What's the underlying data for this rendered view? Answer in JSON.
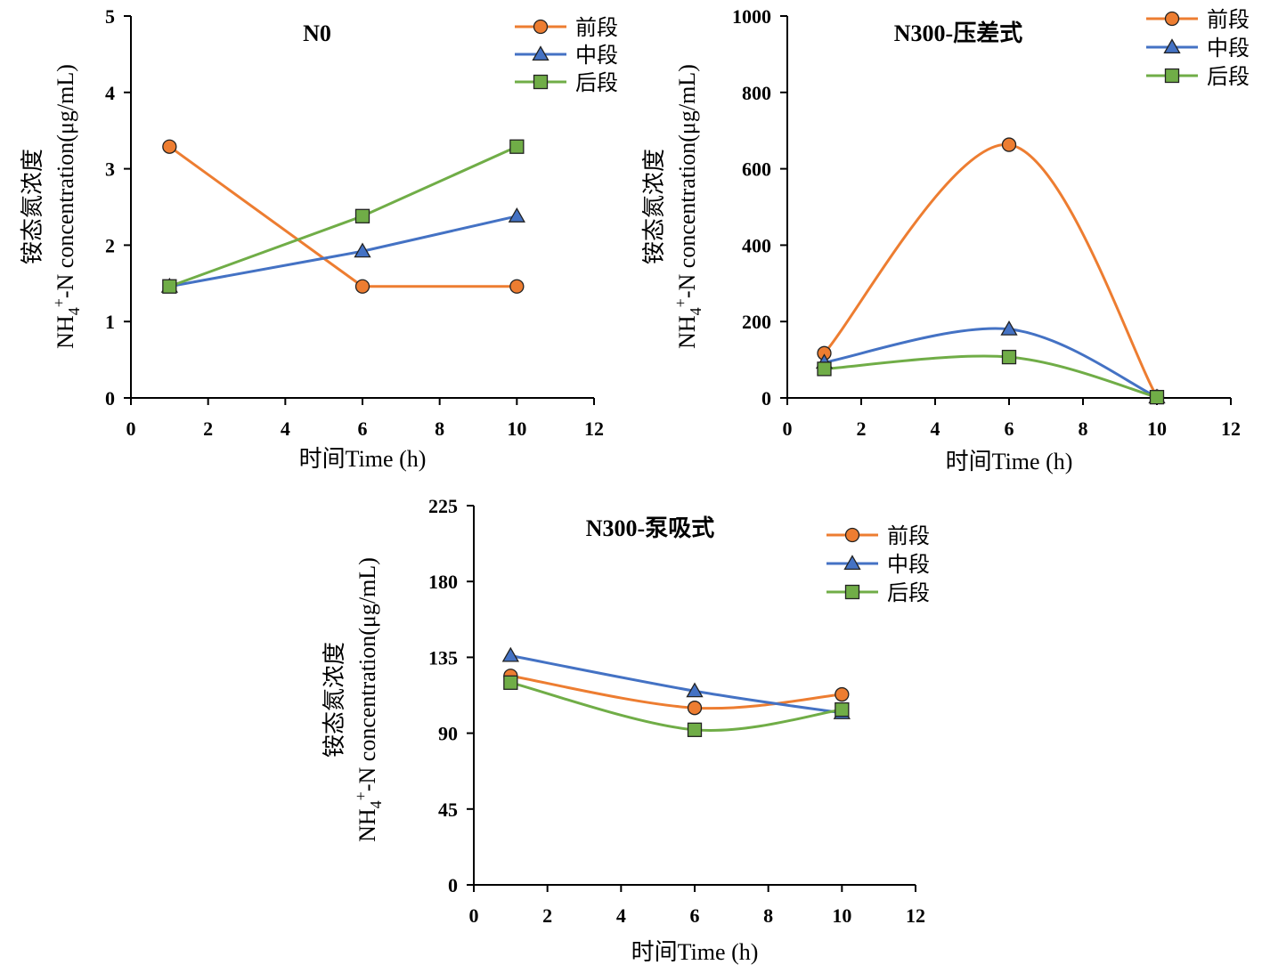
{
  "figure": {
    "colors": {
      "前段": "#ED7D31",
      "中段": "#4472C4",
      "后段": "#70AD47"
    },
    "markers": {
      "前段": "circle",
      "中段": "triangle",
      "后段": "square"
    }
  },
  "chart_data": [
    {
      "type": "line",
      "title": "N0",
      "xlabel": "时间Time (h)",
      "ylabel_line1": "铵态氮浓度",
      "ylabel_line2": "NH4+-N concentration(μg/mL)",
      "xlim": [
        0,
        12
      ],
      "ylim": [
        0,
        5
      ],
      "xticks": [
        0,
        2,
        4,
        6,
        8,
        10,
        12
      ],
      "yticks": [
        0,
        1,
        2,
        3,
        4,
        5
      ],
      "x": [
        1,
        6,
        10
      ],
      "smooth": false,
      "legend_position": "top-right",
      "series": [
        {
          "name": "前段",
          "values": [
            3.29,
            1.46,
            1.46
          ]
        },
        {
          "name": "中段",
          "values": [
            1.46,
            1.92,
            2.38
          ]
        },
        {
          "name": "后段",
          "values": [
            1.46,
            2.38,
            3.29
          ]
        }
      ]
    },
    {
      "type": "line",
      "title": "N300-压差式",
      "xlabel": "时间Time (h)",
      "ylabel_line1": "铵态氮浓度",
      "ylabel_line2": "NH4+-N concentration(μg/mL)",
      "xlim": [
        0,
        12
      ],
      "ylim": [
        0,
        1000
      ],
      "xticks": [
        0,
        2,
        4,
        6,
        8,
        10,
        12
      ],
      "yticks": [
        0,
        200,
        400,
        600,
        800,
        1000
      ],
      "x": [
        1,
        6,
        10
      ],
      "smooth": true,
      "legend_position": "top-right",
      "series": [
        {
          "name": "前段",
          "values": [
            117,
            663,
            3
          ]
        },
        {
          "name": "中段",
          "values": [
            93,
            180,
            2
          ]
        },
        {
          "name": "后段",
          "values": [
            76,
            107,
            2
          ]
        }
      ]
    },
    {
      "type": "line",
      "title": "N300-泵吸式",
      "xlabel": "时间Time (h)",
      "ylabel_line1": "铵态氮浓度",
      "ylabel_line2": "NH4+-N concentration(μg/mL)",
      "xlim": [
        0,
        12
      ],
      "ylim": [
        0,
        225
      ],
      "xticks": [
        0,
        2,
        4,
        6,
        8,
        10,
        12
      ],
      "yticks": [
        0,
        45,
        90,
        135,
        180,
        225
      ],
      "x": [
        1,
        6,
        10
      ],
      "smooth": true,
      "legend_position": "top-right",
      "series": [
        {
          "name": "前段",
          "values": [
            124,
            105,
            113
          ]
        },
        {
          "name": "中段",
          "values": [
            136,
            115,
            102
          ]
        },
        {
          "name": "后段",
          "values": [
            120,
            92,
            104
          ]
        }
      ]
    }
  ]
}
